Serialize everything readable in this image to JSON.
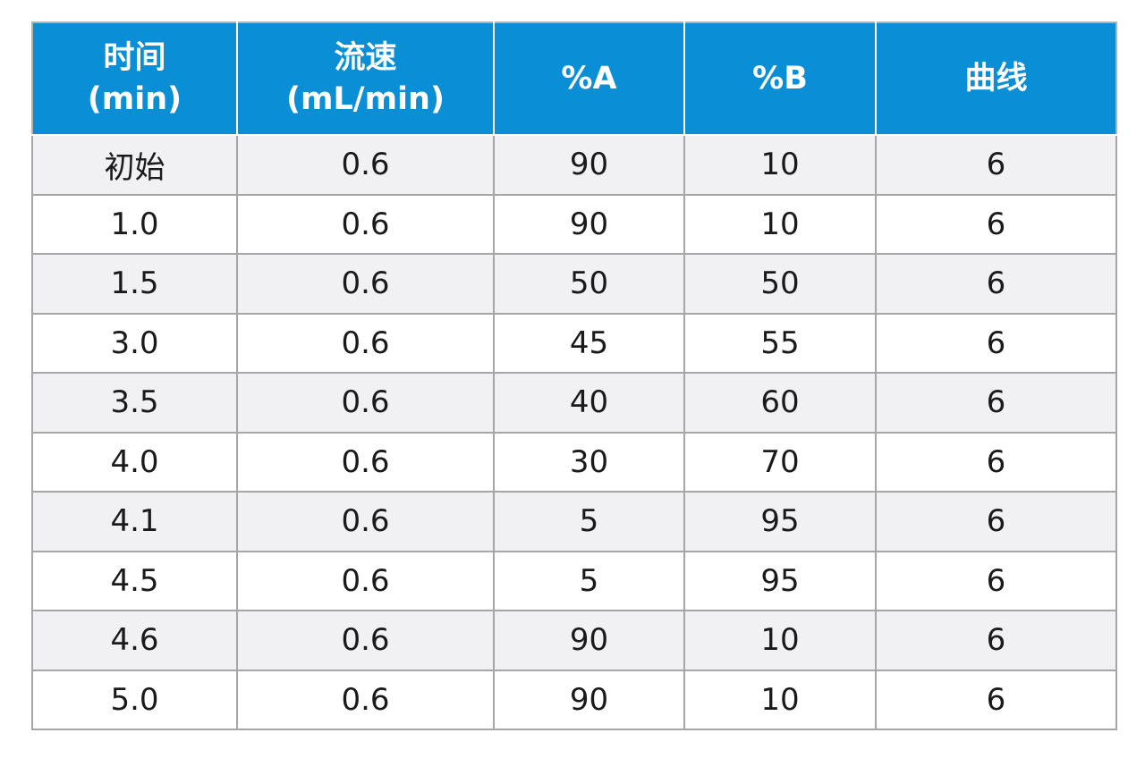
{
  "header": {
    "time": [
      "时间",
      "(min)"
    ],
    "flow": [
      "流速",
      "(mL/min)"
    ],
    "pct_a": "%A",
    "pct_b": "%B",
    "curve": "曲线"
  },
  "rows": [
    [
      "初始",
      "0.6",
      "90",
      "10",
      "6"
    ],
    [
      "1.0",
      "0.6",
      "90",
      "10",
      "6"
    ],
    [
      "1.5",
      "0.6",
      "50",
      "50",
      "6"
    ],
    [
      "3.0",
      "0.6",
      "45",
      "55",
      "6"
    ],
    [
      "3.5",
      "0.6",
      "40",
      "60",
      "6"
    ],
    [
      "4.0",
      "0.6",
      "30",
      "70",
      "6"
    ],
    [
      "4.1",
      "0.6",
      "5",
      "95",
      "6"
    ],
    [
      "4.5",
      "0.6",
      "5",
      "95",
      "6"
    ],
    [
      "4.6",
      "0.6",
      "90",
      "10",
      "6"
    ],
    [
      "5.0",
      "0.6",
      "90",
      "10",
      "6"
    ]
  ],
  "colors": {
    "header_bg": "#0a8fd6",
    "header_text": "#ffffff",
    "row_alt_bg": "#f1f1f4",
    "border": "#a6a6a6"
  }
}
